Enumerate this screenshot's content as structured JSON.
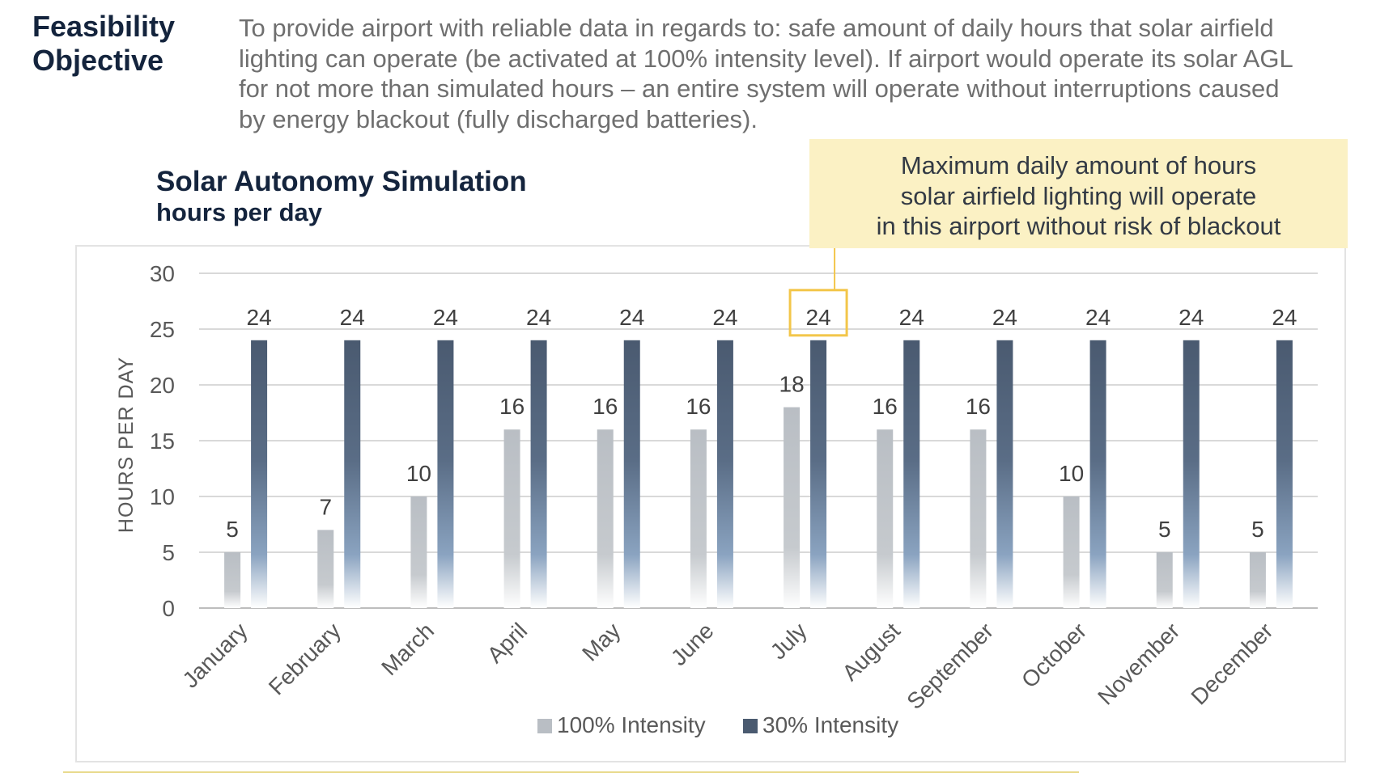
{
  "header": {
    "heading_line1": "Feasibility",
    "heading_line2": "Objective",
    "objective_lines": [
      "To provide airport with reliable data in regards to: safe amount of daily hours that solar airfield",
      "lighting can operate (be activated at 100% intensity level). If airport would operate its solar AGL",
      "for not more than simulated hours – an entire system will operate without interruptions caused",
      "by energy blackout (fully discharged batteries)."
    ]
  },
  "callout": {
    "lines": [
      "Maximum daily amount of hours",
      "solar airfield lighting will operate",
      "in this airport without risk of blackout"
    ],
    "border_color": "#f3c64a",
    "highlighted_category": "July",
    "highlighted_series": "30% Intensity"
  },
  "chart_data": {
    "type": "bar",
    "title": "Solar Autonomy Simulation",
    "subtitle": "hours per day",
    "xlabel": "",
    "ylabel": "HOURS PER DAY",
    "ylim": [
      0,
      30
    ],
    "yticks": [
      0,
      5,
      10,
      15,
      20,
      25,
      30
    ],
    "grid": true,
    "legend_position": "bottom",
    "data_labels": true,
    "categories": [
      "January",
      "February",
      "March",
      "April",
      "May",
      "June",
      "July",
      "August",
      "September",
      "October",
      "November",
      "December"
    ],
    "series": [
      {
        "name": "100% Intensity",
        "color": "#b9bec4",
        "values": [
          5,
          7,
          10,
          16,
          16,
          16,
          18,
          16,
          16,
          10,
          5,
          5
        ]
      },
      {
        "name": "30% Intensity",
        "color": "#4a5a70",
        "values": [
          24,
          24,
          24,
          24,
          24,
          24,
          24,
          24,
          24,
          24,
          24,
          24
        ]
      }
    ]
  }
}
